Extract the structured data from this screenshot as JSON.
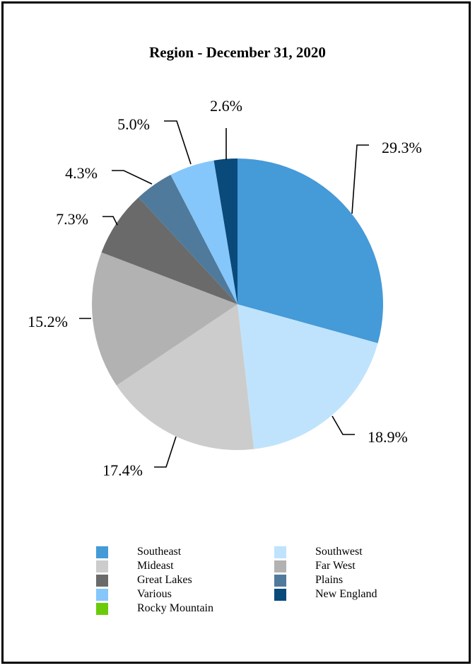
{
  "chart_data": {
    "type": "pie",
    "title": "Region - December 31, 2020",
    "slices": [
      {
        "name": "Southeast",
        "value": 29.3,
        "label": "29.3%",
        "color": "#459ad8"
      },
      {
        "name": "Southwest",
        "value": 18.9,
        "label": "18.9%",
        "color": "#bfe3fc"
      },
      {
        "name": "Mideast",
        "value": 17.4,
        "label": "17.4%",
        "color": "#cccccc"
      },
      {
        "name": "Far West",
        "value": 15.2,
        "label": "15.2%",
        "color": "#b2b2b2"
      },
      {
        "name": "Great Lakes",
        "value": 7.3,
        "label": "7.3%",
        "color": "#6a6a6a"
      },
      {
        "name": "Plains",
        "value": 4.3,
        "label": "4.3%",
        "color": "#4f7a9b"
      },
      {
        "name": "Various",
        "value": 5.0,
        "label": "5.0%",
        "color": "#85c7fb"
      },
      {
        "name": "New England",
        "value": 2.6,
        "label": "2.6%",
        "color": "#094a7b"
      },
      {
        "name": "Rocky Mountain",
        "value": 0,
        "label": "",
        "color": "#6bcb0b"
      }
    ],
    "legend": {
      "placement": "bottom",
      "entries": [
        {
          "name": "Southeast",
          "color": "#459ad8"
        },
        {
          "name": "Southwest",
          "color": "#bfe3fc"
        },
        {
          "name": "Mideast",
          "color": "#cccccc"
        },
        {
          "name": "Far West",
          "color": "#b2b2b2"
        },
        {
          "name": "Great Lakes",
          "color": "#6a6a6a"
        },
        {
          "name": "Plains",
          "color": "#4f7a9b"
        },
        {
          "name": "Various",
          "color": "#85c7fb"
        },
        {
          "name": "New England",
          "color": "#094a7b"
        },
        {
          "name": "Rocky Mountain",
          "color": "#6bcb0b"
        }
      ]
    }
  }
}
